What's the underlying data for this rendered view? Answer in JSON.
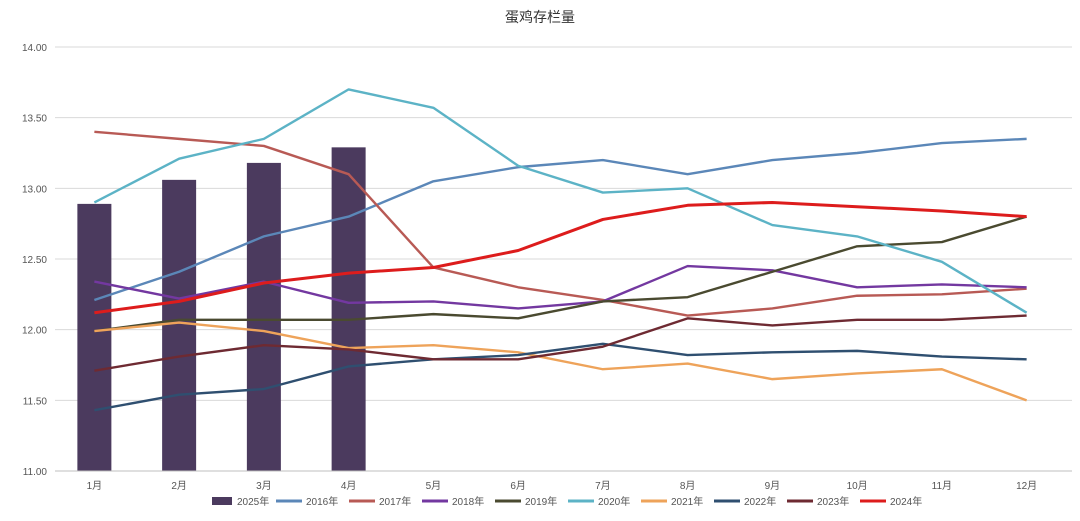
{
  "chart_data": {
    "type": "bar+line",
    "title": "蛋鸡存栏量",
    "xlabel": "",
    "ylabel": "",
    "ylim": [
      11.0,
      14.0
    ],
    "yticks": [
      "11.00",
      "11.50",
      "12.00",
      "12.50",
      "13.00",
      "13.50",
      "14.00"
    ],
    "grid": true,
    "legend": "bottom",
    "categories": [
      "1月",
      "2月",
      "3月",
      "4月",
      "5月",
      "6月",
      "7月",
      "8月",
      "9月",
      "10月",
      "11月",
      "12月"
    ],
    "bar_series": {
      "name": "2025年",
      "color": "#4b3a5e",
      "values": [
        12.89,
        13.06,
        13.18,
        13.29
      ]
    },
    "series": [
      {
        "name": "2016年",
        "color": "#5b87b8",
        "values": [
          12.21,
          12.41,
          12.66,
          12.8,
          13.05,
          13.15,
          13.2,
          13.1,
          13.2,
          13.25,
          13.32,
          13.35
        ]
      },
      {
        "name": "2017年",
        "color": "#b85a55",
        "values": [
          13.4,
          13.35,
          13.3,
          13.1,
          12.44,
          12.3,
          12.21,
          12.1,
          12.15,
          12.24,
          12.25,
          12.29
        ]
      },
      {
        "name": "2018年",
        "color": "#7338a0",
        "values": [
          12.34,
          12.22,
          12.34,
          12.19,
          12.2,
          12.15,
          12.2,
          12.45,
          12.42,
          12.3,
          12.32,
          12.3
        ]
      },
      {
        "name": "2019年",
        "color": "#4a4a30",
        "values": [
          11.99,
          12.07,
          12.07,
          12.07,
          12.11,
          12.08,
          12.2,
          12.23,
          12.41,
          12.59,
          12.62,
          12.8
        ]
      },
      {
        "name": "2020年",
        "color": "#5cb3c6",
        "values": [
          12.9,
          13.21,
          13.35,
          13.7,
          13.57,
          13.16,
          12.97,
          13.0,
          12.74,
          12.66,
          12.48,
          12.12
        ]
      },
      {
        "name": "2021年",
        "color": "#eea35a",
        "values": [
          11.99,
          12.05,
          11.99,
          11.87,
          11.89,
          11.84,
          11.72,
          11.76,
          11.65,
          11.69,
          11.72,
          11.5
        ]
      },
      {
        "name": "2022年",
        "color": "#2f4f70",
        "values": [
          11.43,
          11.54,
          11.58,
          11.74,
          11.79,
          11.82,
          11.9,
          11.82,
          11.84,
          11.85,
          11.81,
          11.79
        ]
      },
      {
        "name": "2023年",
        "color": "#6e2a32",
        "values": [
          11.71,
          11.81,
          11.89,
          11.86,
          11.79,
          11.79,
          11.88,
          12.08,
          12.03,
          12.07,
          12.07,
          12.1
        ]
      },
      {
        "name": "2024年",
        "color": "#dd1c1c",
        "values": [
          12.12,
          12.2,
          12.33,
          12.4,
          12.44,
          12.56,
          12.78,
          12.88,
          12.9,
          12.87,
          12.84,
          12.8
        ]
      }
    ]
  }
}
